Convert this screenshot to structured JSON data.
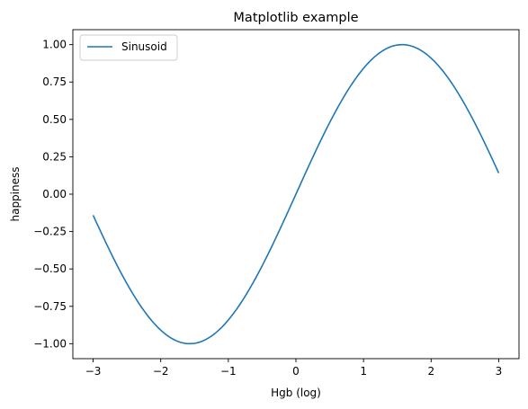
{
  "chart_data": {
    "type": "line",
    "title": "Matplotlib example",
    "xlabel": "Hgb (log)",
    "ylabel": "happiness",
    "xlim": [
      -3.3,
      3.3
    ],
    "ylim": [
      -1.1,
      1.1
    ],
    "xticks": [
      -3,
      -2,
      -1,
      0,
      1,
      2,
      3
    ],
    "xtick_labels": [
      "−3",
      "−2",
      "−1",
      "0",
      "1",
      "2",
      "3"
    ],
    "yticks": [
      -1.0,
      -0.75,
      -0.5,
      -0.25,
      0.0,
      0.25,
      0.5,
      0.75,
      1.0
    ],
    "ytick_labels": [
      "−1.00",
      "−0.75",
      "−0.50",
      "−0.25",
      "0.00",
      "0.25",
      "0.50",
      "0.75",
      "1.00"
    ],
    "grid": false,
    "legend_position": "top-left",
    "series": [
      {
        "name": "Sinusoid",
        "color": "#1f77b4",
        "function": "sin",
        "x_range": [
          -3,
          3
        ]
      }
    ]
  }
}
